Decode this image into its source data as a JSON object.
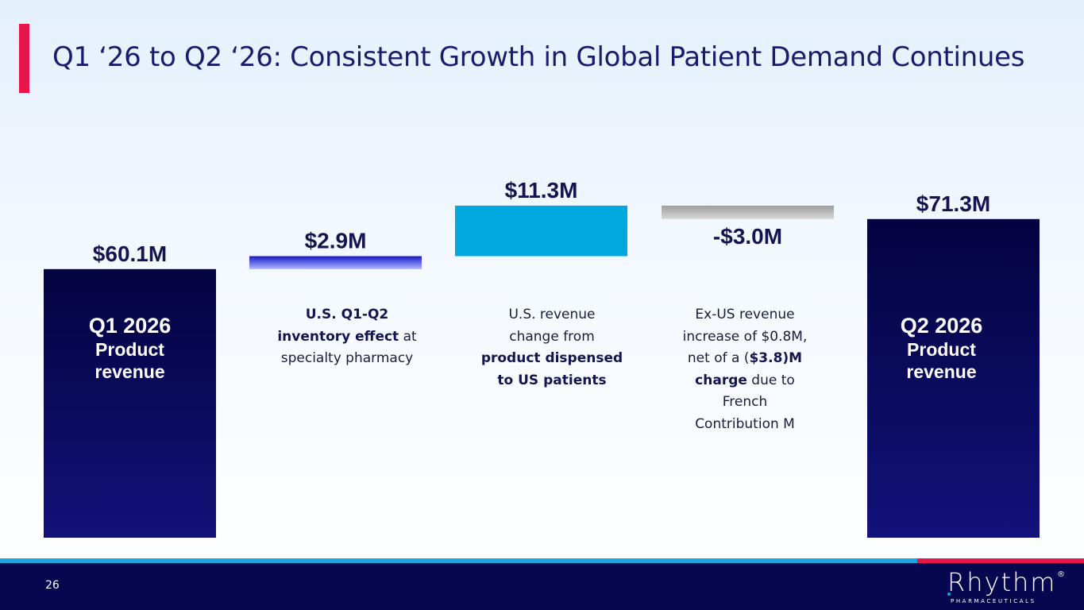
{
  "slide": {
    "title": "Q1 ‘26 to Q2 ‘26: Consistent Growth in Global Patient Demand Continues",
    "page_number": "26"
  },
  "logo": {
    "word": "Rhythm",
    "reg": "®",
    "sub": "PHARMACEUTICALS"
  },
  "bars": [
    {
      "value_label": "$60.1M",
      "inner_line1": "Q1 2026",
      "inner_line2": "Product",
      "inner_line3": "revenue"
    },
    {
      "value_label": "$2.9M"
    },
    {
      "value_label": "$11.3M"
    },
    {
      "value_label": "-$3.0M"
    },
    {
      "value_label": "$71.3M",
      "inner_line1": "Q2 2026",
      "inner_line2": "Product",
      "inner_line3": "revenue"
    }
  ],
  "descriptions": {
    "d1": {
      "b1": "U.S. Q1-Q2",
      "b2": "inventory  effect",
      "t1": " at",
      "t2": "specialty pharmacy"
    },
    "d2": {
      "t1": "U.S. revenue",
      "t2": "change from",
      "b1": "product dispensed",
      "b2": "to US patients"
    },
    "d3": {
      "t1": "Ex-US revenue",
      "t2": "increase of $0.8M,",
      "t3": "net of a (",
      "b1": "$3.8)M",
      "b2": "charge",
      "t4": " due to",
      "t5": "French",
      "t6": "Contribution M"
    }
  },
  "chart_data": {
    "type": "bar",
    "subtype": "waterfall",
    "categories": [
      "Q1 2026 Product revenue",
      "U.S. Q1-Q2 inventory effect at specialty pharmacy",
      "U.S. revenue change from product dispensed to US patients",
      "Ex-US revenue increase of $0.8M, net of a ($3.8)M charge due to French Contribution M",
      "Q2 2026 Product revenue"
    ],
    "values": [
      60.1,
      2.9,
      11.3,
      -3.0,
      71.3
    ],
    "kinds": [
      "total",
      "delta",
      "delta",
      "delta",
      "total"
    ],
    "data_labels": [
      "$60.1M",
      "$2.9M",
      "$11.3M",
      "-$3.0M",
      "$71.3M"
    ],
    "colors": {
      "total_top": "#030340",
      "total_bottom": "#12127a",
      "inventory_top": "#1818c8",
      "inventory_bottom": "#b0b8ff",
      "us_change": "#00a8e0",
      "exus_top": "#9e9e9e",
      "exus_bottom": "#d8d8d8"
    },
    "grid": false,
    "legend": false
  }
}
